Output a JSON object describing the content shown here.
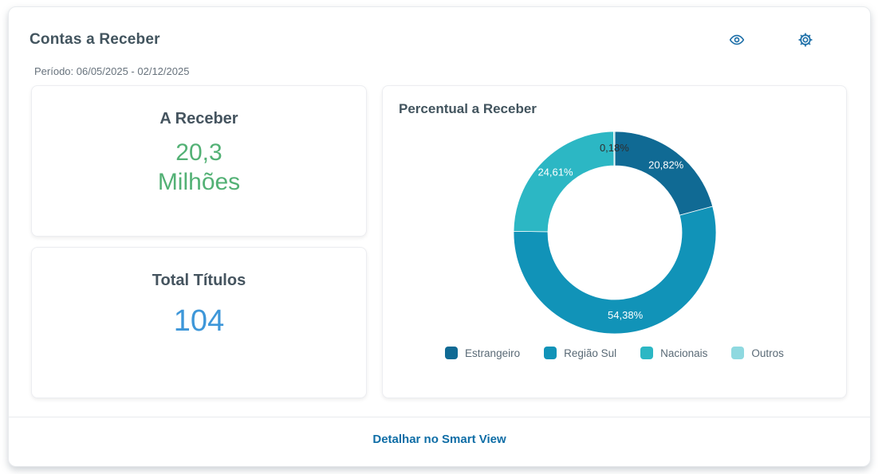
{
  "widget": {
    "title": "Contas a Receber",
    "period": "Período: 06/05/2025 - 02/12/2025",
    "footer_link": "Detalhar no Smart View"
  },
  "kpis": {
    "receivable": {
      "title": "A Receber",
      "value_line1": "20,3",
      "value_line2": "Milhões",
      "value_color": "#53b175"
    },
    "total_titles": {
      "title": "Total Títulos",
      "value": "104",
      "value_color": "#3e97d9"
    }
  },
  "chart_data": {
    "type": "pie",
    "title": "Percentual a Receber",
    "donut": true,
    "start_angle": "top",
    "direction": "clockwise",
    "legend_position": "bottom",
    "unit": "%",
    "series": [
      {
        "name": "Estrangeiro",
        "value": 20.82,
        "display": "20,82%",
        "color": "#106a94",
        "label_color": "#ffffff"
      },
      {
        "name": "Região Sul",
        "value": 54.38,
        "display": "54,38%",
        "color": "#1193b8",
        "label_color": "#ffffff"
      },
      {
        "name": "Nacionais",
        "value": 24.61,
        "display": "24,61%",
        "color": "#2cb7c4",
        "label_color": "#ffffff"
      },
      {
        "name": "Outros",
        "value": 0.18,
        "display": "0,18%",
        "color": "#8fd9e0",
        "label_color": "#2f2f2f"
      }
    ]
  },
  "theme": {
    "icon_color": "#1d6fa8",
    "link_color": "#0e6da6",
    "heading_color": "#42545e"
  }
}
